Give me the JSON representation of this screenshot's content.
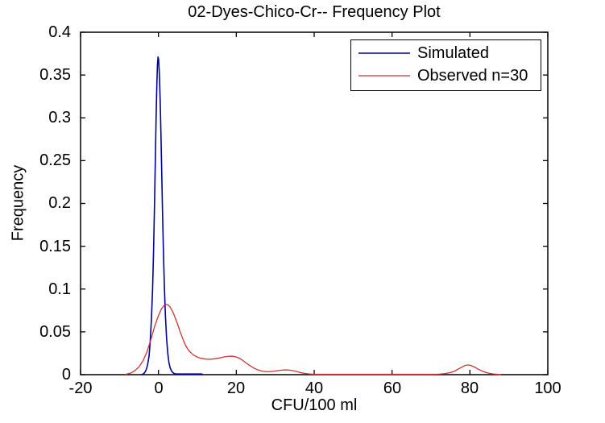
{
  "figure": {
    "title": "02-Dyes-Chico-Cr-- Frequency Plot",
    "xlabel": "CFU/100 ml",
    "ylabel": "Frequency"
  },
  "legend": {
    "position": "top-right",
    "entries": [
      {
        "label": "Simulated",
        "color": "#00009E"
      },
      {
        "label": "Observed n=30",
        "color": "#CC3333"
      }
    ]
  },
  "chart_data": {
    "type": "line",
    "title": "02-Dyes-Chico-Cr-- Frequency Plot",
    "xlabel": "CFU/100 ml",
    "ylabel": "Frequency",
    "xlim": [
      -20,
      100
    ],
    "ylim": [
      0,
      0.4
    ],
    "grid": false,
    "legend_position": "top-right",
    "xticks": [
      -20,
      0,
      20,
      40,
      60,
      80,
      100
    ],
    "xticklabels": [
      "-20",
      "0",
      "20",
      "40",
      "60",
      "80",
      "100"
    ],
    "yticks": [
      0,
      0.05,
      0.1,
      0.15,
      0.2,
      0.25,
      0.3,
      0.35,
      0.4
    ],
    "yticklabels": [
      "0",
      "0.05",
      "0.1",
      "0.15",
      "0.2",
      "0.25",
      "0.3",
      "0.35",
      "0.4"
    ],
    "axis_color": "#000000",
    "series": [
      {
        "name": "Simulated",
        "color": "#00009E",
        "width": 1.6,
        "peak": {
          "x": 0,
          "y": 0.37
        },
        "points": [
          [
            -4.5,
            0
          ],
          [
            -4.0,
            0.0006
          ],
          [
            -3.6,
            0.002
          ],
          [
            -3.2,
            0.005
          ],
          [
            -2.8,
            0.011
          ],
          [
            -2.4,
            0.022
          ],
          [
            -2.1,
            0.04
          ],
          [
            -1.8,
            0.065
          ],
          [
            -1.5,
            0.1
          ],
          [
            -1.25,
            0.145
          ],
          [
            -1.0,
            0.2
          ],
          [
            -0.8,
            0.25
          ],
          [
            -0.6,
            0.3
          ],
          [
            -0.4,
            0.34
          ],
          [
            -0.25,
            0.362
          ],
          [
            -0.1,
            0.371
          ],
          [
            0.05,
            0.368
          ],
          [
            0.25,
            0.35
          ],
          [
            0.45,
            0.32
          ],
          [
            0.65,
            0.28
          ],
          [
            0.85,
            0.235
          ],
          [
            1.05,
            0.19
          ],
          [
            1.3,
            0.14
          ],
          [
            1.55,
            0.1
          ],
          [
            1.8,
            0.068
          ],
          [
            2.1,
            0.042
          ],
          [
            2.4,
            0.025
          ],
          [
            2.7,
            0.014
          ],
          [
            3.0,
            0.008
          ],
          [
            3.4,
            0.004
          ],
          [
            3.8,
            0.002
          ],
          [
            4.2,
            0.001
          ],
          [
            4.8,
            0.0008
          ],
          [
            6.0,
            0.0008
          ],
          [
            8.0,
            0.0008
          ],
          [
            10.0,
            0.0008
          ],
          [
            11.0,
            0.0008
          ],
          [
            11.4,
            0.0003
          ]
        ]
      },
      {
        "name": "Observed n=30",
        "color": "#CC3333",
        "width": 1.3,
        "peak": {
          "x": 2,
          "y": 0.082
        },
        "points": [
          [
            -8.5,
            0.0002
          ],
          [
            -8,
            0.0008
          ],
          [
            -7,
            0.002
          ],
          [
            -6,
            0.005
          ],
          [
            -5,
            0.009
          ],
          [
            -4,
            0.016
          ],
          [
            -3,
            0.026
          ],
          [
            -2,
            0.04
          ],
          [
            -1,
            0.056
          ],
          [
            0,
            0.069
          ],
          [
            0.8,
            0.077
          ],
          [
            1.5,
            0.081
          ],
          [
            2,
            0.082
          ],
          [
            2.5,
            0.0815
          ],
          [
            3,
            0.079
          ],
          [
            3.5,
            0.075
          ],
          [
            4,
            0.07
          ],
          [
            4.5,
            0.064
          ],
          [
            5,
            0.058
          ],
          [
            5.5,
            0.051
          ],
          [
            6,
            0.045
          ],
          [
            6.5,
            0.039
          ],
          [
            7,
            0.034
          ],
          [
            7.5,
            0.03
          ],
          [
            8,
            0.027
          ],
          [
            9,
            0.023
          ],
          [
            10,
            0.0205
          ],
          [
            11,
            0.019
          ],
          [
            12,
            0.0183
          ],
          [
            13,
            0.018
          ],
          [
            14,
            0.0183
          ],
          [
            15,
            0.019
          ],
          [
            16,
            0.0198
          ],
          [
            17,
            0.0208
          ],
          [
            18,
            0.0214
          ],
          [
            18.8,
            0.0216
          ],
          [
            19.6,
            0.0212
          ],
          [
            20.5,
            0.0198
          ],
          [
            21.5,
            0.0172
          ],
          [
            22.5,
            0.0138
          ],
          [
            23.5,
            0.0105
          ],
          [
            24.5,
            0.0077
          ],
          [
            25.5,
            0.0056
          ],
          [
            26.5,
            0.0042
          ],
          [
            27.5,
            0.0035
          ],
          [
            28.5,
            0.0035
          ],
          [
            29.5,
            0.004
          ],
          [
            30.5,
            0.0046
          ],
          [
            31.5,
            0.0052
          ],
          [
            32.5,
            0.0056
          ],
          [
            33.5,
            0.0054
          ],
          [
            34.5,
            0.0047
          ],
          [
            35.5,
            0.0036
          ],
          [
            36.5,
            0.0024
          ],
          [
            37.5,
            0.0015
          ],
          [
            38.5,
            0.0009
          ],
          [
            39.5,
            0.0006
          ],
          [
            41,
            0.0004
          ],
          [
            45,
            0.0004
          ],
          [
            50,
            0.0004
          ],
          [
            55,
            0.0004
          ],
          [
            60,
            0.0004
          ],
          [
            65,
            0.0004
          ],
          [
            70,
            0.0004
          ],
          [
            72,
            0.0006
          ],
          [
            73.5,
            0.0012
          ],
          [
            75,
            0.0025
          ],
          [
            76,
            0.004
          ],
          [
            77,
            0.0065
          ],
          [
            78,
            0.009
          ],
          [
            78.8,
            0.0108
          ],
          [
            79.5,
            0.0113
          ],
          [
            80.2,
            0.0108
          ],
          [
            81,
            0.0092
          ],
          [
            82,
            0.0068
          ],
          [
            83,
            0.0045
          ],
          [
            84,
            0.0027
          ],
          [
            85,
            0.0015
          ],
          [
            86,
            0.0008
          ],
          [
            87,
            0.0004
          ],
          [
            88,
            0.0002
          ]
        ]
      }
    ]
  }
}
